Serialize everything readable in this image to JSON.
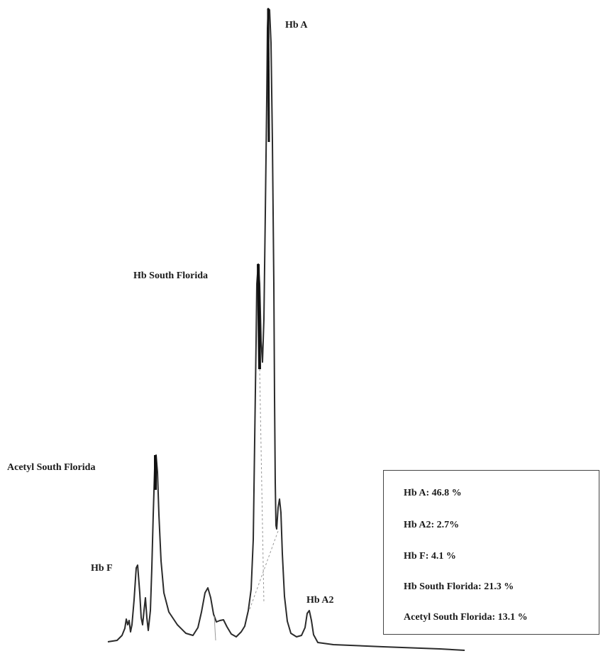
{
  "chart_data": {
    "type": "line",
    "peak_labels": [
      "Hb A",
      "Hb South Florida",
      "Acetyl South Florida",
      "Hb F",
      "Hb A2"
    ],
    "results": [
      {
        "name": "Hb A",
        "value": 46.8,
        "text": "Hb A: 46.8 %"
      },
      {
        "name": "Hb A2",
        "value": 2.7,
        "text": "Hb A2: 2.7%"
      },
      {
        "name": "Hb F",
        "value": 4.1,
        "text": "Hb F: 4.1 %"
      },
      {
        "name": "Hb South Florida",
        "value": 21.3,
        "text": "Hb South Florida: 21.3 %"
      },
      {
        "name": "Acetyl South Florida",
        "value": 13.1,
        "text": "Acetyl South Florida: 13.1 %"
      }
    ],
    "grid": false,
    "legend_position": "bottom-right",
    "colors": {
      "trace": "#2b2b2b",
      "baseline": "#999999",
      "frame": "#444444"
    }
  }
}
